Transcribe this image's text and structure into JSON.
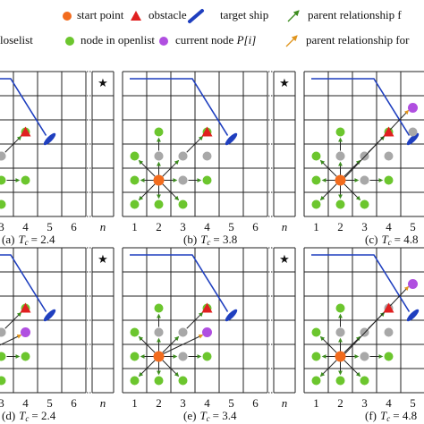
{
  "legend": {
    "start_point": "start point",
    "obstacle": "obstacle",
    "target_ship": "target ship",
    "parent_open": "parent relationship f",
    "closelist": "loselist",
    "openlist": "node in openlist",
    "current_node": {
      "text": "current node",
      "symbol": "P[i]"
    },
    "parent_close": "parent relationship for"
  },
  "columns": [
    "1",
    "2",
    "3",
    "4",
    "5",
    "6",
    "n"
  ],
  "panels": [
    {
      "prefix": "(a)",
      "var": "T",
      "sub": "c",
      "rest": "= 2.4"
    },
    {
      "prefix": "(b)",
      "var": "T",
      "sub": "c",
      "rest": "= 3.8"
    },
    {
      "prefix": "(c)",
      "var": "T",
      "sub": "c",
      "rest": "= 4.8"
    },
    {
      "prefix": "(d)",
      "var": "T",
      "sub": "c",
      "rest": "= 2.4"
    },
    {
      "prefix": "(e)",
      "var": "T",
      "sub": "c",
      "rest": "= 3.4"
    },
    {
      "prefix": "(f)",
      "var": "T",
      "sub": "c",
      "rest": "= 4.8"
    }
  ]
}
